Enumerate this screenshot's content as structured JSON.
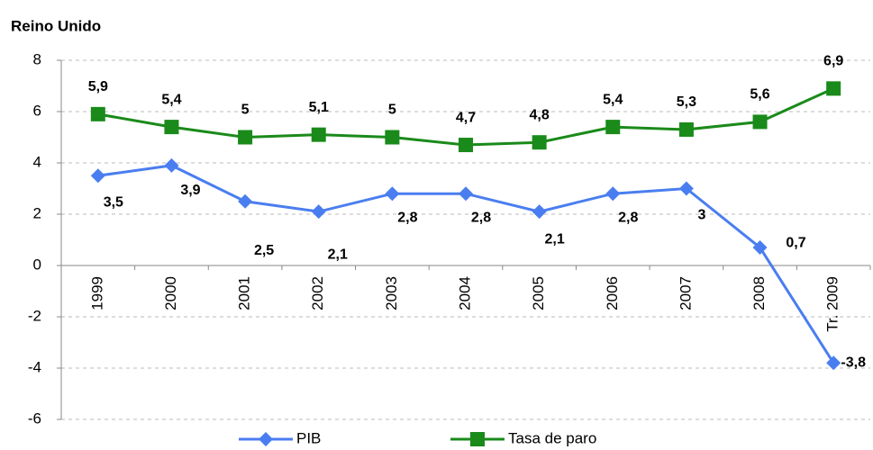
{
  "chart_data": {
    "type": "line",
    "title": "Reino Unido",
    "categories": [
      "1999",
      "2000",
      "2001",
      "2002",
      "2003",
      "2004",
      "2005",
      "2006",
      "2007",
      "2008",
      "Tr. 2009"
    ],
    "series": [
      {
        "name": "PIB",
        "color": "#4a7ef0",
        "marker": "diamond",
        "values": [
          3.5,
          3.9,
          2.5,
          2.1,
          2.8,
          2.8,
          2.1,
          2.8,
          3,
          0.7,
          -3.8
        ],
        "value_labels": [
          "3,5",
          "3,9",
          "2,5",
          "2,1",
          "2,8",
          "2,8",
          "2,1",
          "2,8",
          "3",
          "0,7",
          "-3,8"
        ]
      },
      {
        "name": "Tasa de paro",
        "color": "#1a8a1a",
        "marker": "square",
        "values": [
          5.9,
          5.4,
          5,
          5.1,
          5,
          4.7,
          4.8,
          5.4,
          5.3,
          5.6,
          6.9
        ],
        "value_labels": [
          "5,9",
          "5,4",
          "5",
          "5,1",
          "5",
          "4,7",
          "4,8",
          "5,4",
          "5,3",
          "5,6",
          "6,9"
        ]
      }
    ],
    "ylim": [
      -6,
      8
    ],
    "yticks": [
      -6,
      -4,
      -2,
      0,
      2,
      4,
      6,
      8
    ],
    "grid": true,
    "legend": "bottom"
  }
}
